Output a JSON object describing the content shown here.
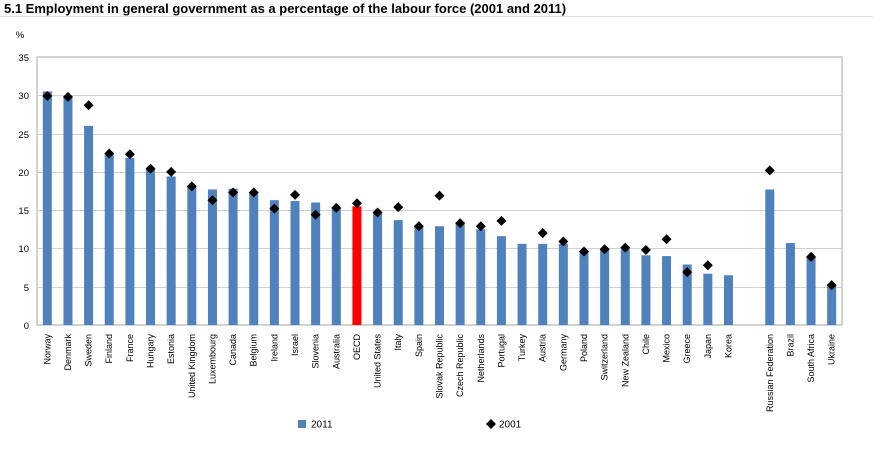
{
  "title": "5.1 Employment in general government as a percentage of the labour force (2001 and 2011)",
  "chart_data": {
    "type": "bar",
    "ylabel": "%",
    "ylim": [
      0,
      35
    ],
    "yticks": [
      0,
      5,
      10,
      15,
      20,
      25,
      30,
      35
    ],
    "grid": true,
    "legend_position": "bottom",
    "categories": [
      "Norway",
      "Denmark",
      "Sweden",
      "Finland",
      "France",
      "Hungary",
      "Estonia",
      "United Kingdom",
      "Luxembourg",
      "Canada",
      "Belgium",
      "Ireland",
      "Israel",
      "Slovenia",
      "Australia",
      "OECD",
      "United States",
      "Italy",
      "Spain",
      "Slovak Republic",
      "Czech Republic",
      "Netherlands",
      "Portugal",
      "Turkey",
      "Austria",
      "Germany",
      "Poland",
      "Switzerland",
      "New Zealand",
      "Chile",
      "Mexico",
      "Greece",
      "Japan",
      "Korea",
      "",
      "Russian Federation",
      "Brazil",
      "South Africa",
      "Ukraine"
    ],
    "series": [
      {
        "name": "2011",
        "kind": "bar",
        "color": "#4f81bd",
        "highlight": {
          "OECD": "#ff0000"
        },
        "values": [
          30.5,
          29.8,
          26.0,
          22.4,
          21.8,
          20.3,
          19.4,
          18.0,
          17.7,
          17.8,
          17.2,
          16.3,
          16.2,
          16.0,
          15.3,
          15.5,
          14.6,
          13.7,
          12.8,
          12.9,
          13.2,
          12.5,
          11.6,
          10.6,
          10.6,
          10.6,
          9.6,
          9.9,
          9.9,
          9.1,
          9.0,
          7.9,
          6.7,
          6.5,
          null,
          17.7,
          10.7,
          8.9,
          5.2
        ]
      },
      {
        "name": "2001",
        "kind": "marker",
        "color": "#000000",
        "values": [
          29.9,
          29.8,
          28.7,
          22.4,
          22.3,
          20.4,
          20.0,
          18.1,
          16.3,
          17.3,
          17.3,
          15.2,
          17.0,
          14.4,
          15.3,
          15.9,
          14.7,
          15.4,
          12.9,
          16.9,
          13.3,
          12.9,
          13.6,
          null,
          12.0,
          10.9,
          9.6,
          9.9,
          10.1,
          9.8,
          11.2,
          6.9,
          7.8,
          null,
          null,
          20.2,
          null,
          8.9,
          5.2
        ]
      }
    ]
  }
}
